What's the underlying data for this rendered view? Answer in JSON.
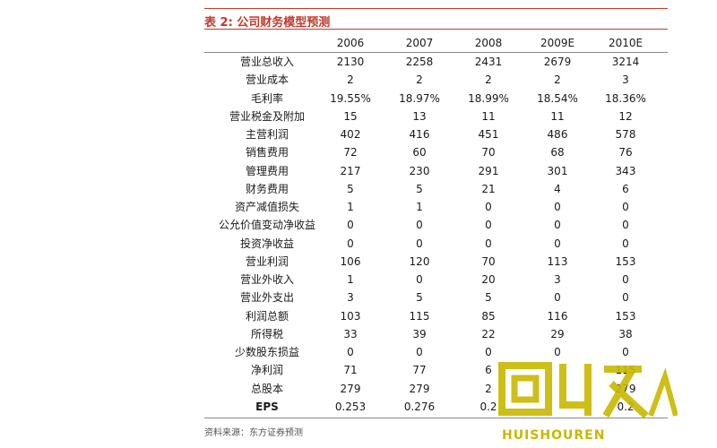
{
  "title": "表 2: 公司财务模型预测",
  "columns": [
    "2006",
    "2007",
    "2008",
    "2009E",
    "2010E"
  ],
  "rows": [
    {
      "label": "营业总收入",
      "values": [
        "2130",
        "2258",
        "2431",
        "2679",
        "3214"
      ]
    },
    {
      "label": "营业成本",
      "values": [
        "2",
        "2",
        "2",
        "2",
        "3"
      ]
    },
    {
      "label": "毛利率",
      "values": [
        "19.55%",
        "18.97%",
        "18.99%",
        "18.54%",
        "18.36%"
      ]
    },
    {
      "label": "营业税金及附加",
      "values": [
        "15",
        "13",
        "11",
        "11",
        "12"
      ]
    },
    {
      "label": "主营利润",
      "values": [
        "402",
        "416",
        "451",
        "486",
        "578"
      ]
    },
    {
      "label": "销售费用",
      "values": [
        "72",
        "60",
        "70",
        "68",
        "76"
      ]
    },
    {
      "label": "管理费用",
      "values": [
        "217",
        "230",
        "291",
        "301",
        "343"
      ]
    },
    {
      "label": "财务费用",
      "values": [
        "5",
        "5",
        "21",
        "4",
        "6"
      ]
    },
    {
      "label": "资产减值损失",
      "values": [
        "1",
        "1",
        "0",
        "0",
        "0"
      ]
    },
    {
      "label": "公允价值变动净收益",
      "values": [
        "0",
        "0",
        "0",
        "0",
        "0"
      ]
    },
    {
      "label": "投资净收益",
      "values": [
        "0",
        "0",
        "0",
        "0",
        "0"
      ]
    },
    {
      "label": "营业利润",
      "values": [
        "106",
        "120",
        "70",
        "113",
        "153"
      ]
    },
    {
      "label": "营业外收入",
      "values": [
        "1",
        "0",
        "20",
        "3",
        "0"
      ]
    },
    {
      "label": "营业外支出",
      "values": [
        "3",
        "5",
        "5",
        "0",
        "0"
      ]
    },
    {
      "label": "利润总额",
      "values": [
        "103",
        "115",
        "85",
        "116",
        "153"
      ]
    },
    {
      "label": "所得税",
      "values": [
        "33",
        "39",
        "22",
        "29",
        "38"
      ]
    },
    {
      "label": "少数股东损益",
      "values": [
        "0",
        "0",
        "0",
        "0",
        "0"
      ]
    },
    {
      "label": "净利润",
      "values": [
        "71",
        "77",
        "6",
        "",
        "115"
      ]
    },
    {
      "label": "总股本",
      "values": [
        "279",
        "279",
        "2",
        "",
        "279"
      ]
    },
    {
      "label": "EPS",
      "values": [
        "0.253",
        "0.276",
        "0.2",
        "",
        "0.2"
      ]
    }
  ],
  "source": "资料来源：东方证券预测",
  "watermark": {
    "text": "HUISHOUREN",
    "color": "#c9b800"
  }
}
